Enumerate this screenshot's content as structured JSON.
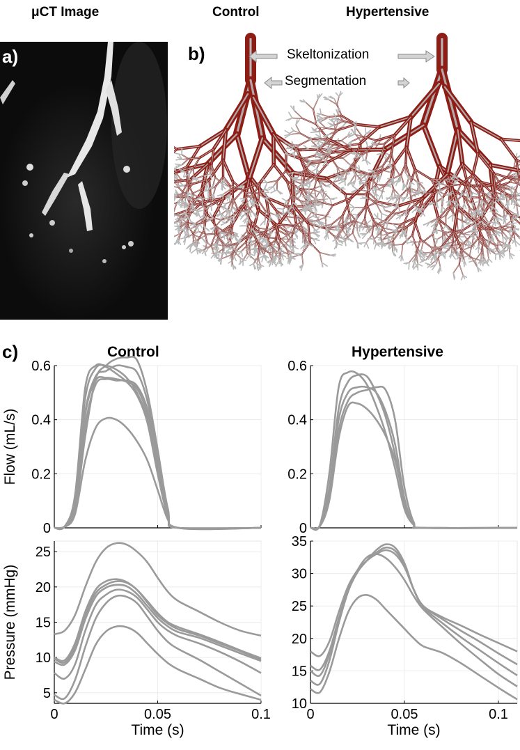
{
  "panel_a": {
    "heading": "μCT Image",
    "letter": "a)"
  },
  "panel_b": {
    "letter": "b)",
    "heading_control": "Control",
    "heading_hypertensive": "Hypertensive",
    "annotation_skeleton": "Skeltonization",
    "annotation_segmentation": "Segmentation",
    "colors": {
      "vessel": "#8e1d16",
      "skeleton": "#b8b8b8"
    }
  },
  "panel_c": {
    "letter": "c)",
    "heading_control": "Control",
    "heading_hypertensive": "Hypertensive"
  },
  "chart_data": [
    {
      "id": "flow-control",
      "type": "line",
      "title": "Control",
      "xlabel": "",
      "ylabel": "Flow (mL/s)",
      "xlim": [
        0,
        0.1
      ],
      "ylim": [
        0,
        0.6
      ],
      "xticks": [
        0,
        0.05,
        0.1
      ],
      "yticks": [
        0,
        0.2,
        0.4,
        0.6
      ],
      "xtick_labels": [
        "",
        "",
        ""
      ],
      "ytick_labels": [
        "0",
        "0.2",
        "0.4",
        "0.6"
      ],
      "grid": true,
      "line_color": "#9a9a9a",
      "series": [
        {
          "x": [
            0,
            0.005,
            0.01,
            0.015,
            0.02,
            0.025,
            0.03,
            0.035,
            0.04,
            0.045,
            0.05,
            0.055,
            0.06,
            0.1
          ],
          "values": [
            0,
            0.005,
            0.12,
            0.52,
            0.6,
            0.595,
            0.57,
            0.54,
            0.49,
            0.39,
            0.2,
            0.04,
            0,
            0
          ]
        },
        {
          "x": [
            0,
            0.005,
            0.01,
            0.015,
            0.02,
            0.025,
            0.03,
            0.035,
            0.04,
            0.045,
            0.05,
            0.055,
            0.06,
            0.1
          ],
          "values": [
            0,
            0.005,
            0.1,
            0.48,
            0.59,
            0.6,
            0.585,
            0.555,
            0.5,
            0.4,
            0.21,
            0.04,
            0,
            0
          ]
        },
        {
          "x": [
            0,
            0.005,
            0.01,
            0.015,
            0.02,
            0.025,
            0.03,
            0.035,
            0.04,
            0.045,
            0.05,
            0.055,
            0.06,
            0.1
          ],
          "values": [
            0,
            0.005,
            0.08,
            0.42,
            0.545,
            0.555,
            0.55,
            0.54,
            0.515,
            0.42,
            0.23,
            0.05,
            0,
            0
          ]
        },
        {
          "x": [
            0,
            0.005,
            0.01,
            0.015,
            0.02,
            0.025,
            0.03,
            0.035,
            0.04,
            0.045,
            0.05,
            0.055,
            0.06,
            0.1
          ],
          "values": [
            0,
            0.005,
            0.07,
            0.38,
            0.53,
            0.55,
            0.545,
            0.545,
            0.525,
            0.44,
            0.26,
            0.06,
            0,
            0
          ]
        },
        {
          "x": [
            0,
            0.005,
            0.01,
            0.015,
            0.02,
            0.025,
            0.03,
            0.035,
            0.04,
            0.045,
            0.05,
            0.055,
            0.06,
            0.1
          ],
          "values": [
            0,
            0.005,
            0.09,
            0.43,
            0.56,
            0.58,
            0.6,
            0.595,
            0.575,
            0.47,
            0.27,
            0.06,
            0,
            0
          ]
        },
        {
          "x": [
            0,
            0.005,
            0.01,
            0.015,
            0.02,
            0.025,
            0.03,
            0.035,
            0.04,
            0.045,
            0.05,
            0.055,
            0.06,
            0.1
          ],
          "values": [
            0,
            0.005,
            0.06,
            0.34,
            0.55,
            0.6,
            0.625,
            0.63,
            0.62,
            0.5,
            0.29,
            0.07,
            0,
            0
          ]
        },
        {
          "x": [
            0,
            0.005,
            0.01,
            0.015,
            0.02,
            0.025,
            0.03,
            0.035,
            0.04,
            0.045,
            0.05,
            0.055,
            0.06,
            0.1
          ],
          "values": [
            0,
            0.003,
            0.05,
            0.25,
            0.37,
            0.405,
            0.4,
            0.37,
            0.32,
            0.25,
            0.14,
            0.03,
            0,
            0
          ]
        }
      ]
    },
    {
      "id": "flow-hypertensive",
      "type": "line",
      "title": "Hypertensive",
      "xlabel": "",
      "ylabel": "",
      "xlim": [
        0,
        0.11
      ],
      "ylim": [
        0,
        0.6
      ],
      "xticks": [
        0,
        0.05,
        0.1
      ],
      "yticks": [
        0,
        0.2,
        0.4,
        0.6
      ],
      "xtick_labels": [
        "",
        "",
        ""
      ],
      "ytick_labels": [
        "0",
        "0.2",
        "0.4",
        "0.6"
      ],
      "grid": true,
      "line_color": "#9a9a9a",
      "series": [
        {
          "x": [
            0,
            0.005,
            0.01,
            0.015,
            0.02,
            0.025,
            0.03,
            0.035,
            0.04,
            0.045,
            0.05,
            0.055,
            0.06,
            0.11
          ],
          "values": [
            0,
            0.01,
            0.2,
            0.52,
            0.575,
            0.57,
            0.53,
            0.45,
            0.35,
            0.22,
            0.07,
            0.01,
            0,
            0
          ]
        },
        {
          "x": [
            0,
            0.005,
            0.01,
            0.015,
            0.02,
            0.025,
            0.03,
            0.035,
            0.04,
            0.045,
            0.05,
            0.055,
            0.06,
            0.11
          ],
          "values": [
            0,
            0.008,
            0.15,
            0.44,
            0.54,
            0.565,
            0.56,
            0.5,
            0.41,
            0.27,
            0.09,
            0.01,
            0,
            0
          ]
        },
        {
          "x": [
            0,
            0.005,
            0.01,
            0.015,
            0.02,
            0.025,
            0.03,
            0.035,
            0.04,
            0.045,
            0.05,
            0.055,
            0.06,
            0.11
          ],
          "values": [
            0,
            0.008,
            0.13,
            0.4,
            0.5,
            0.52,
            0.52,
            0.5,
            0.43,
            0.31,
            0.11,
            0.01,
            0,
            0
          ]
        },
        {
          "x": [
            0,
            0.005,
            0.01,
            0.015,
            0.02,
            0.025,
            0.03,
            0.035,
            0.04,
            0.045,
            0.05,
            0.055,
            0.06,
            0.11
          ],
          "values": [
            0,
            0.006,
            0.11,
            0.36,
            0.47,
            0.5,
            0.51,
            0.52,
            0.51,
            0.4,
            0.15,
            0.02,
            0,
            0
          ]
        },
        {
          "x": [
            0,
            0.005,
            0.01,
            0.015,
            0.02,
            0.025,
            0.03,
            0.035,
            0.04,
            0.045,
            0.05,
            0.055,
            0.06,
            0.11
          ],
          "values": [
            0,
            0.006,
            0.1,
            0.33,
            0.45,
            0.46,
            0.44,
            0.4,
            0.34,
            0.25,
            0.1,
            0.01,
            0,
            0
          ]
        }
      ]
    },
    {
      "id": "pressure-control",
      "type": "line",
      "title": "",
      "xlabel": "Time (s)",
      "ylabel": "Pressure (mmHg)",
      "xlim": [
        0,
        0.1
      ],
      "ylim": [
        3.5,
        26.5
      ],
      "xticks": [
        0,
        0.05,
        0.1
      ],
      "yticks": [
        5,
        10,
        15,
        20,
        25
      ],
      "xtick_labels": [
        "0",
        "0.05",
        "0.1"
      ],
      "ytick_labels": [
        "5",
        "10",
        "15",
        "20",
        "25"
      ],
      "grid": true,
      "line_color": "#9a9a9a",
      "series": [
        {
          "x": [
            0,
            0.005,
            0.01,
            0.015,
            0.02,
            0.025,
            0.03,
            0.035,
            0.04,
            0.045,
            0.05,
            0.055,
            0.06,
            0.07,
            0.08,
            0.09,
            0.1
          ],
          "values": [
            13.3,
            13.8,
            16,
            20,
            23.5,
            25.5,
            26.2,
            26,
            25,
            23.5,
            21.3,
            19.3,
            18,
            16.5,
            15,
            13.8,
            13.1
          ]
        },
        {
          "x": [
            0,
            0.005,
            0.01,
            0.015,
            0.02,
            0.025,
            0.03,
            0.035,
            0.04,
            0.045,
            0.05,
            0.055,
            0.06,
            0.07,
            0.08,
            0.09,
            0.1
          ],
          "values": [
            10,
            9.6,
            12,
            16.5,
            19.6,
            20.8,
            21.1,
            20.7,
            19.6,
            18,
            16.3,
            15,
            14.3,
            13.3,
            12.2,
            11,
            9.9
          ]
        },
        {
          "x": [
            0,
            0.005,
            0.01,
            0.015,
            0.02,
            0.025,
            0.03,
            0.035,
            0.04,
            0.045,
            0.05,
            0.055,
            0.06,
            0.07,
            0.08,
            0.09,
            0.1
          ],
          "values": [
            9.8,
            9.3,
            11.5,
            16,
            19.1,
            20.3,
            20.8,
            20.6,
            19.6,
            17.8,
            16,
            14.8,
            14,
            13.1,
            12,
            10.9,
            9.7
          ]
        },
        {
          "x": [
            0,
            0.005,
            0.01,
            0.015,
            0.02,
            0.025,
            0.03,
            0.035,
            0.04,
            0.045,
            0.05,
            0.055,
            0.06,
            0.07,
            0.08,
            0.09,
            0.1
          ],
          "values": [
            9.4,
            9,
            11,
            15.4,
            18.6,
            19.9,
            20.3,
            20.1,
            19,
            17.3,
            15.6,
            14.4,
            13.6,
            12.8,
            11.7,
            10.6,
            9.5
          ]
        },
        {
          "x": [
            0,
            0.005,
            0.01,
            0.015,
            0.02,
            0.025,
            0.03,
            0.035,
            0.04,
            0.045,
            0.05,
            0.055,
            0.06,
            0.07,
            0.08,
            0.09,
            0.1
          ],
          "values": [
            7.8,
            7,
            9,
            13.8,
            17.4,
            18.9,
            19.6,
            19.4,
            18.5,
            16.8,
            15,
            13.8,
            13,
            12,
            10.8,
            9.4,
            7.8
          ]
        },
        {
          "x": [
            0,
            0.005,
            0.01,
            0.015,
            0.02,
            0.025,
            0.03,
            0.035,
            0.04,
            0.045,
            0.05,
            0.055,
            0.06,
            0.07,
            0.08,
            0.09,
            0.1
          ],
          "values": [
            4.7,
            4.2,
            6.8,
            11.5,
            15.5,
            17.7,
            18.7,
            18.6,
            17.7,
            15.8,
            13.8,
            12.2,
            11.2,
            9.7,
            8,
            6.3,
            4.6
          ]
        },
        {
          "x": [
            0,
            0.005,
            0.01,
            0.015,
            0.02,
            0.025,
            0.03,
            0.035,
            0.04,
            0.045,
            0.05,
            0.055,
            0.06,
            0.07,
            0.08,
            0.09,
            0.1
          ],
          "values": [
            4,
            3.5,
            5,
            8.3,
            11.8,
            13.7,
            14.4,
            14.3,
            13.5,
            12,
            10.5,
            9.2,
            8.3,
            7,
            5.7,
            4.8,
            4
          ]
        }
      ]
    },
    {
      "id": "pressure-hypertensive",
      "type": "line",
      "title": "",
      "xlabel": "Time (s)",
      "ylabel": "",
      "xlim": [
        0,
        0.11
      ],
      "ylim": [
        10,
        35
      ],
      "xticks": [
        0,
        0.05,
        0.1
      ],
      "yticks": [
        10,
        15,
        20,
        25,
        30,
        35
      ],
      "xtick_labels": [
        "0",
        "0.05",
        "0.1"
      ],
      "ytick_labels": [
        "10",
        "15",
        "20",
        "25",
        "30",
        "35"
      ],
      "grid": true,
      "line_color": "#9a9a9a",
      "series": [
        {
          "x": [
            0,
            0.005,
            0.01,
            0.015,
            0.02,
            0.025,
            0.03,
            0.035,
            0.04,
            0.045,
            0.05,
            0.055,
            0.06,
            0.07,
            0.08,
            0.09,
            0.1,
            0.11
          ],
          "values": [
            18,
            17.3,
            19.5,
            24,
            28,
            30.5,
            32,
            33,
            33.6,
            33,
            31,
            27.5,
            25,
            23.3,
            22,
            20.6,
            19.3,
            18
          ]
        },
        {
          "x": [
            0,
            0.005,
            0.01,
            0.015,
            0.02,
            0.025,
            0.03,
            0.035,
            0.04,
            0.045,
            0.05,
            0.055,
            0.06,
            0.07,
            0.08,
            0.09,
            0.1,
            0.11
          ],
          "values": [
            15.8,
            15.2,
            18,
            23,
            27.5,
            30.3,
            32,
            33.2,
            34,
            33.5,
            31.3,
            27.5,
            25,
            23,
            21.2,
            19.5,
            17.7,
            16
          ]
        },
        {
          "x": [
            0,
            0.005,
            0.01,
            0.015,
            0.02,
            0.025,
            0.03,
            0.035,
            0.04,
            0.045,
            0.05,
            0.055,
            0.06,
            0.07,
            0.08,
            0.09,
            0.1,
            0.11
          ],
          "values": [
            15,
            14.3,
            17.5,
            22.8,
            27.3,
            30.2,
            32,
            33.6,
            34.5,
            34,
            31.6,
            27.5,
            24.8,
            22.4,
            20.2,
            18.2,
            16.2,
            14.3
          ]
        },
        {
          "x": [
            0,
            0.005,
            0.01,
            0.015,
            0.02,
            0.025,
            0.03,
            0.035,
            0.04,
            0.045,
            0.05,
            0.055,
            0.06,
            0.07,
            0.08,
            0.09,
            0.1,
            0.11
          ],
          "values": [
            13.5,
            13,
            16.5,
            22.3,
            27.2,
            30.5,
            32.5,
            33,
            32.4,
            31,
            29,
            26.5,
            24.5,
            21.8,
            19.2,
            16.8,
            14.5,
            12.6
          ]
        },
        {
          "x": [
            0,
            0.005,
            0.01,
            0.015,
            0.02,
            0.025,
            0.03,
            0.035,
            0.04,
            0.045,
            0.05,
            0.055,
            0.06,
            0.07,
            0.08,
            0.09,
            0.1,
            0.11
          ],
          "values": [
            12.2,
            11.7,
            14.8,
            19.8,
            24,
            26.2,
            26.7,
            26,
            24.5,
            23,
            21.5,
            20,
            18.8,
            17.8,
            16.2,
            14.3,
            12.4,
            10.6
          ]
        }
      ]
    }
  ]
}
